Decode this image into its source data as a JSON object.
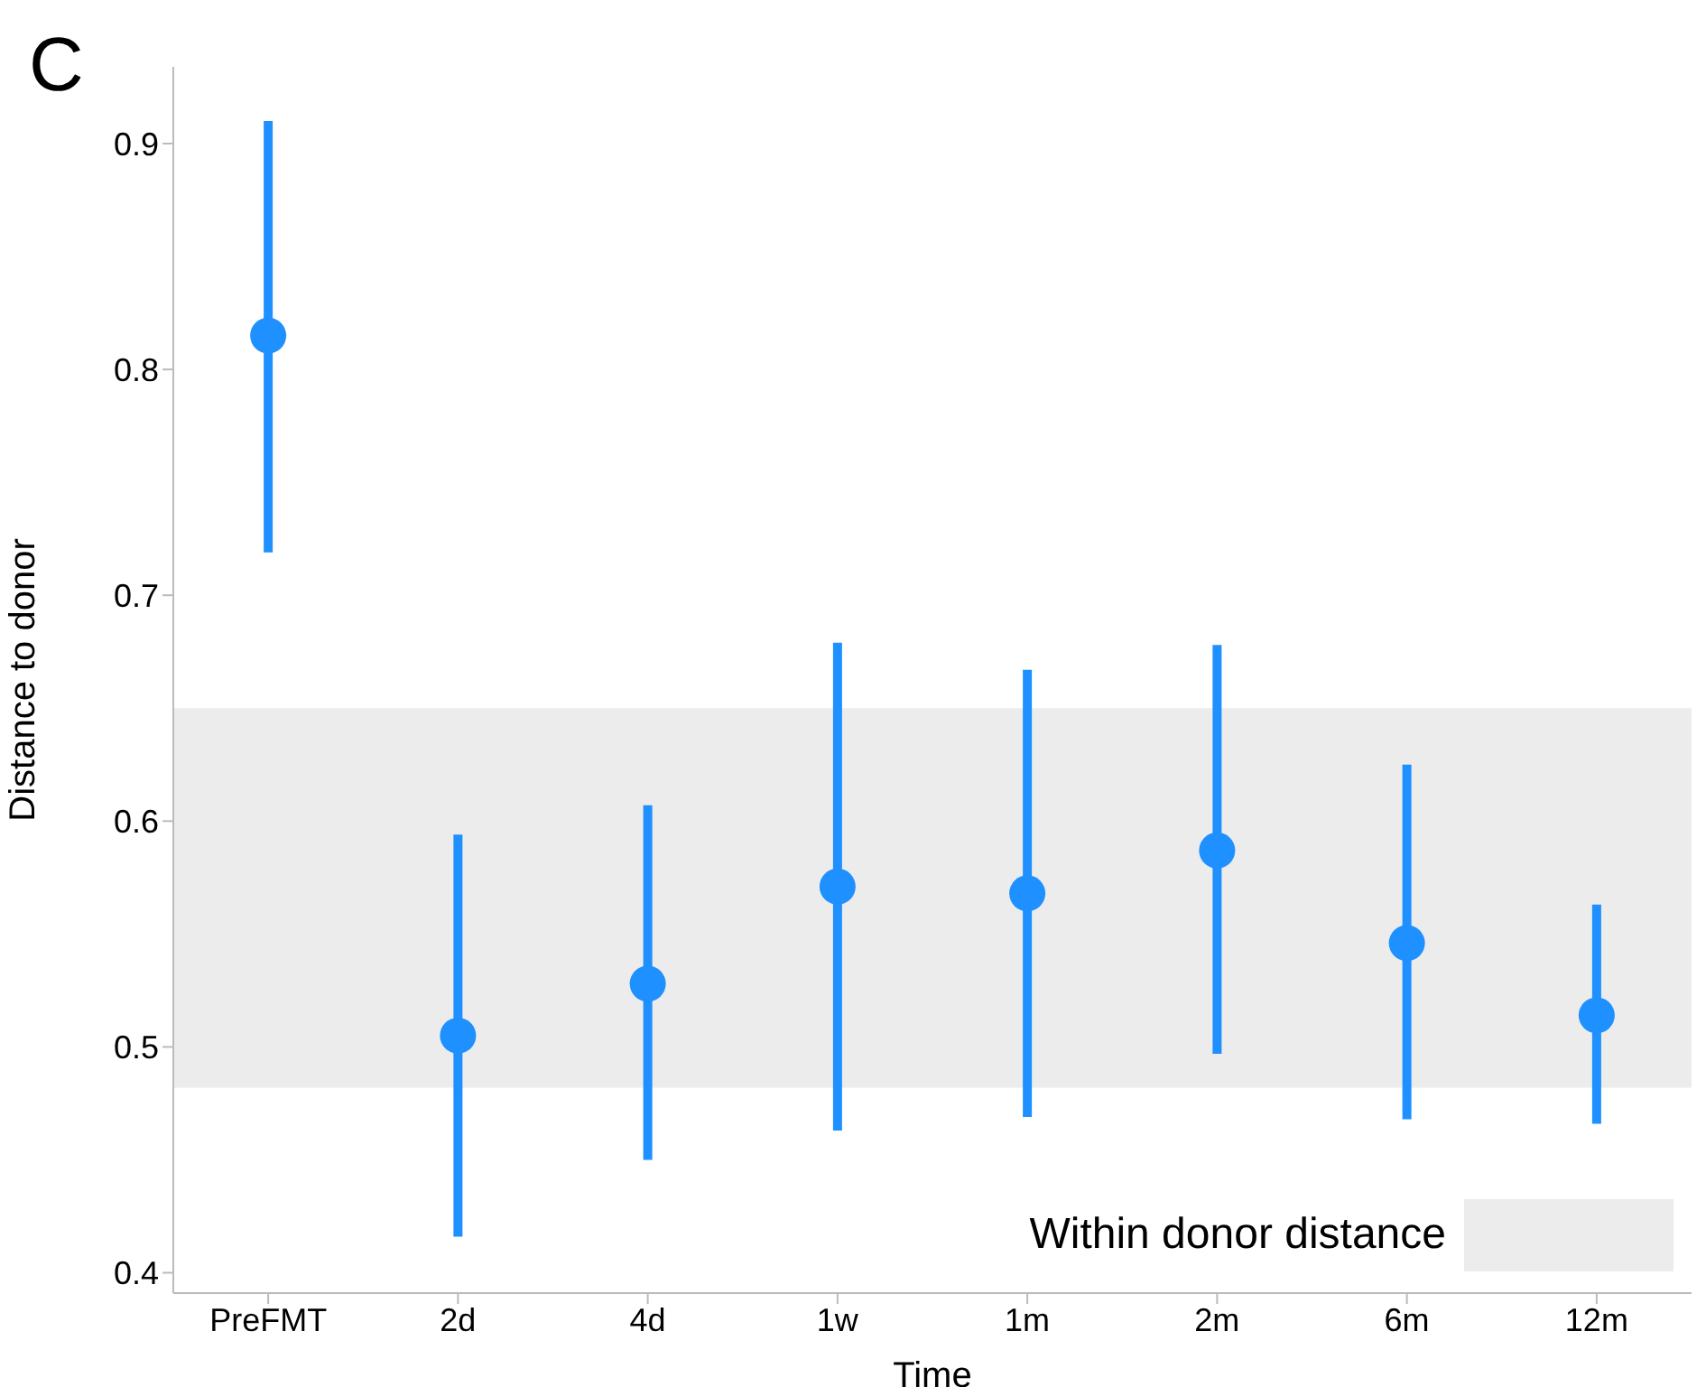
{
  "chart_data": {
    "type": "scatter",
    "xlabel": "Time",
    "ylabel": "Distance to donor",
    "categories": [
      "PreFMT",
      "2d",
      "4d",
      "1w",
      "1m",
      "2m",
      "6m",
      "12m"
    ],
    "series": [
      {
        "color": "#1e90ff",
        "values": [
          0.815,
          0.505,
          0.528,
          0.571,
          0.568,
          0.587,
          0.546,
          0.514
        ],
        "errors": [
          [
            0.719,
            0.91
          ],
          [
            0.416,
            0.594
          ],
          [
            0.45,
            0.607
          ],
          [
            0.463,
            0.679
          ],
          [
            0.469,
            0.667
          ],
          [
            0.497,
            0.678
          ],
          [
            0.468,
            0.625
          ],
          [
            0.466,
            0.563
          ]
        ]
      }
    ],
    "ylim": [
      0.391,
      0.934
    ],
    "yticks": [
      0.4,
      0.5,
      0.6,
      0.7,
      0.8,
      0.9
    ],
    "bands": [
      {
        "axis": "y",
        "from": 0.482,
        "to": 0.65,
        "label": "Within donor distance",
        "color": "#ececec"
      }
    ],
    "annotations": [
      "C"
    ],
    "legend": "bottom right",
    "marker": "circle",
    "grid": false
  }
}
